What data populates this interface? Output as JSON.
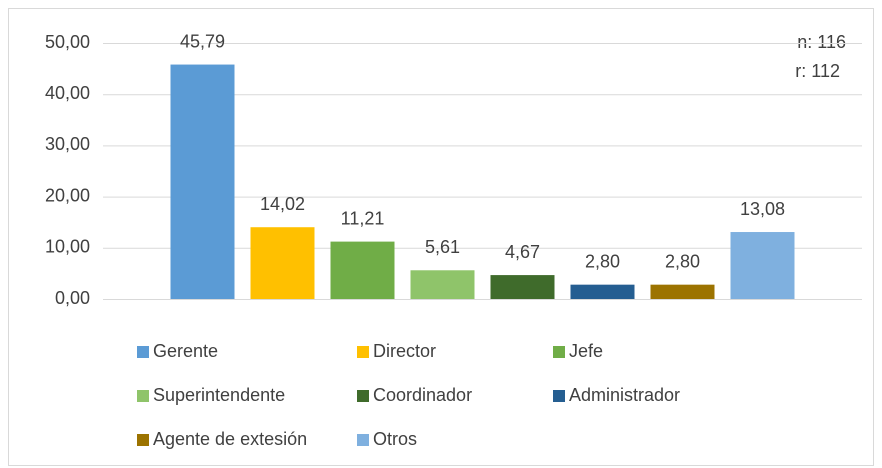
{
  "chart_data": {
    "type": "bar",
    "categories": [
      "Gerente",
      "Director",
      "Jefe",
      "Superintendente",
      "Coordinador",
      "Administrador",
      "Agente de extesión",
      "Otros"
    ],
    "values": [
      45.79,
      14.02,
      11.21,
      5.61,
      4.67,
      2.8,
      2.8,
      13.08
    ],
    "value_labels": [
      "45,79",
      "14,02",
      "11,21",
      "5,61",
      "4,67",
      "2,80",
      "2,80",
      "13,08"
    ],
    "colors": [
      "#5b9bd5",
      "#ffc000",
      "#70ad47",
      "#8fc46a",
      "#3f6b2b",
      "#255e91",
      "#9c7300",
      "#7fb0df"
    ],
    "ylim": [
      0,
      50
    ],
    "yticks": [
      {
        "value": 0,
        "label": "0,00"
      },
      {
        "value": 10,
        "label": "10,00"
      },
      {
        "value": 20,
        "label": "20,00"
      },
      {
        "value": 30,
        "label": "30,00"
      },
      {
        "value": 40,
        "label": "40,00"
      },
      {
        "value": 50,
        "label": "50,00"
      }
    ],
    "annotations": [
      "n: 116",
      "r: 112"
    ],
    "grid": true
  }
}
